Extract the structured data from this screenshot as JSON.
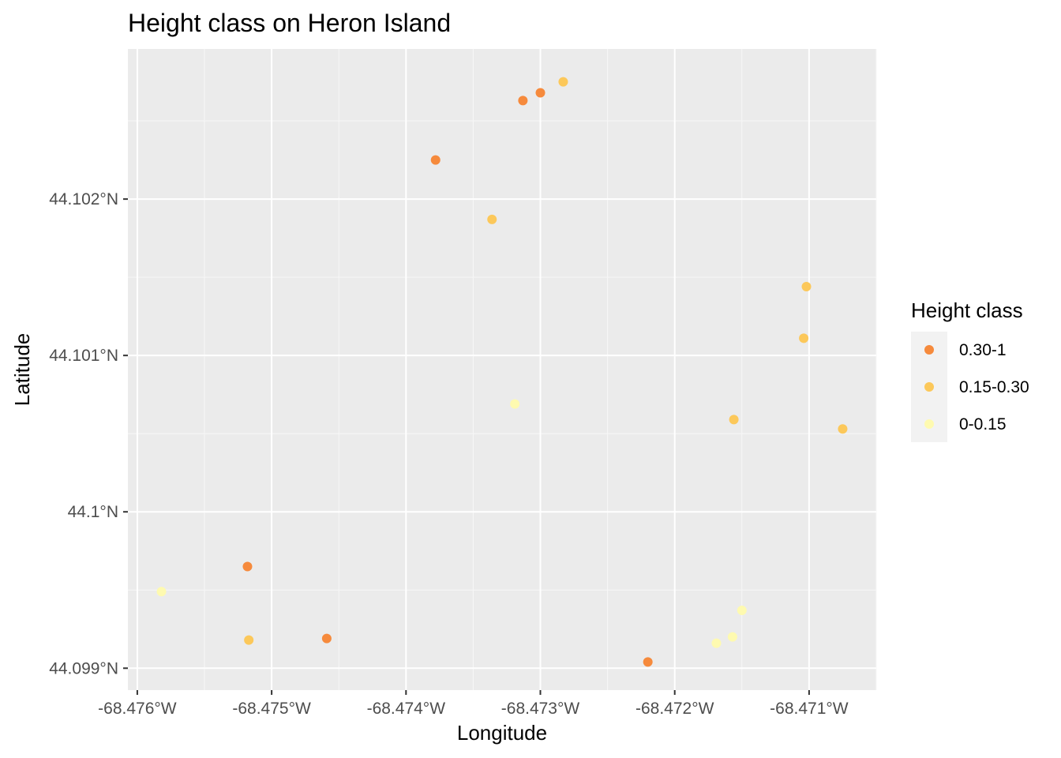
{
  "chart_data": {
    "type": "scatter",
    "title": "Height class on Heron Island",
    "xlabel": "Longitude",
    "ylabel": "Latitude",
    "xlim": [
      -68.47607,
      -68.4705
    ],
    "ylim": [
      44.09886,
      44.10296
    ],
    "x_ticks": [
      {
        "value": -68.476,
        "label": "-68.476°W"
      },
      {
        "value": -68.475,
        "label": "-68.475°W"
      },
      {
        "value": -68.474,
        "label": "-68.474°W"
      },
      {
        "value": -68.473,
        "label": "-68.473°W"
      },
      {
        "value": -68.472,
        "label": "-68.472°W"
      },
      {
        "value": -68.471,
        "label": "-68.471°W"
      }
    ],
    "y_ticks": [
      {
        "value": 44.099,
        "label": "44.099°N"
      },
      {
        "value": 44.1,
        "label": "44.1°N"
      },
      {
        "value": 44.101,
        "label": "44.101°N"
      },
      {
        "value": 44.102,
        "label": "44.102°N"
      }
    ],
    "grid": true,
    "legend": {
      "title": "Height class",
      "position": "right",
      "items": [
        {
          "label": "0.30-1",
          "color": "#F68A3C"
        },
        {
          "label": "0.15-0.30",
          "color": "#FCC85A"
        },
        {
          "label": "0-0.15",
          "color": "#FEFAB0"
        }
      ]
    },
    "series": [
      {
        "name": "0.30-1",
        "color": "#F68A3C",
        "points": [
          {
            "x": -68.47313,
            "y": 44.10263
          },
          {
            "x": -68.473,
            "y": 44.10268
          },
          {
            "x": -68.47378,
            "y": 44.10225
          },
          {
            "x": -68.47518,
            "y": 44.09965
          },
          {
            "x": -68.47459,
            "y": 44.09919
          },
          {
            "x": -68.4722,
            "y": 44.09904
          }
        ]
      },
      {
        "name": "0.15-0.30",
        "color": "#FCC85A",
        "points": [
          {
            "x": -68.47283,
            "y": 44.10275
          },
          {
            "x": -68.47336,
            "y": 44.10187
          },
          {
            "x": -68.47102,
            "y": 44.10144
          },
          {
            "x": -68.47104,
            "y": 44.10111
          },
          {
            "x": -68.47156,
            "y": 44.10059
          },
          {
            "x": -68.47075,
            "y": 44.10053
          },
          {
            "x": -68.47517,
            "y": 44.09918
          }
        ]
      },
      {
        "name": "0-0.15",
        "color": "#FEFAB0",
        "points": [
          {
            "x": -68.47319,
            "y": 44.10069
          },
          {
            "x": -68.47582,
            "y": 44.09949
          },
          {
            "x": -68.4715,
            "y": 44.09937
          },
          {
            "x": -68.47157,
            "y": 44.0992
          },
          {
            "x": -68.47169,
            "y": 44.09916
          }
        ]
      }
    ]
  }
}
